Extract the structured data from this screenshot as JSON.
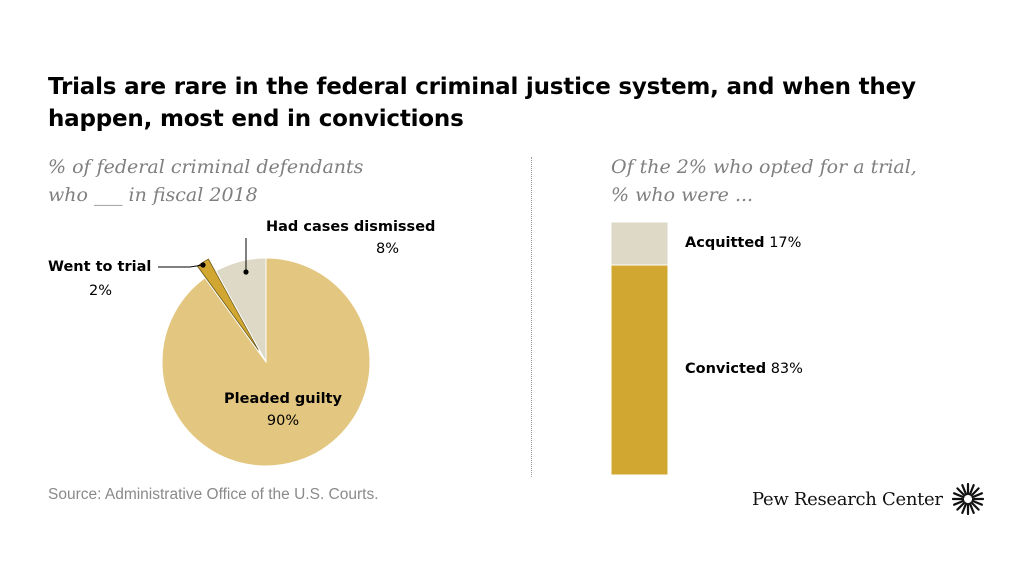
{
  "title": "Trials are rare in the federal criminal justice system, and when they happen, most end in convictions",
  "source": "Source: Administrative Office of the U.S. Courts.",
  "logo": {
    "text": "Pew Research Center",
    "icon": "pew-sunburst-icon"
  },
  "colors": {
    "gold": "#D1A732",
    "light_gold": "#E3C67F",
    "beige": "#DDD9C6",
    "subtitle": "#7F7F7F"
  },
  "chart_data": [
    {
      "type": "pie",
      "subtitle": [
        "% of federal criminal defendants",
        "who ___ in fiscal 2018"
      ],
      "slices": [
        {
          "label": "Pleaded guilty",
          "value": 90,
          "value_label": "90%",
          "color": "#E3C67F"
        },
        {
          "label": "Went to trial",
          "value": 2,
          "value_label": "2%",
          "color": "#D1A732"
        },
        {
          "label": "Had cases dismissed",
          "value": 8,
          "value_label": "8%",
          "color": "#DDD9C6"
        }
      ]
    },
    {
      "type": "bar",
      "stacked": true,
      "subtitle": [
        "Of the 2% who opted for a trial,",
        "% who were ..."
      ],
      "segments": [
        {
          "label": "Acquitted",
          "value": 17,
          "value_label": "17%",
          "color": "#DDD9C6"
        },
        {
          "label": "Convicted",
          "value": 83,
          "value_label": "83%",
          "color": "#D1A732"
        }
      ]
    }
  ]
}
